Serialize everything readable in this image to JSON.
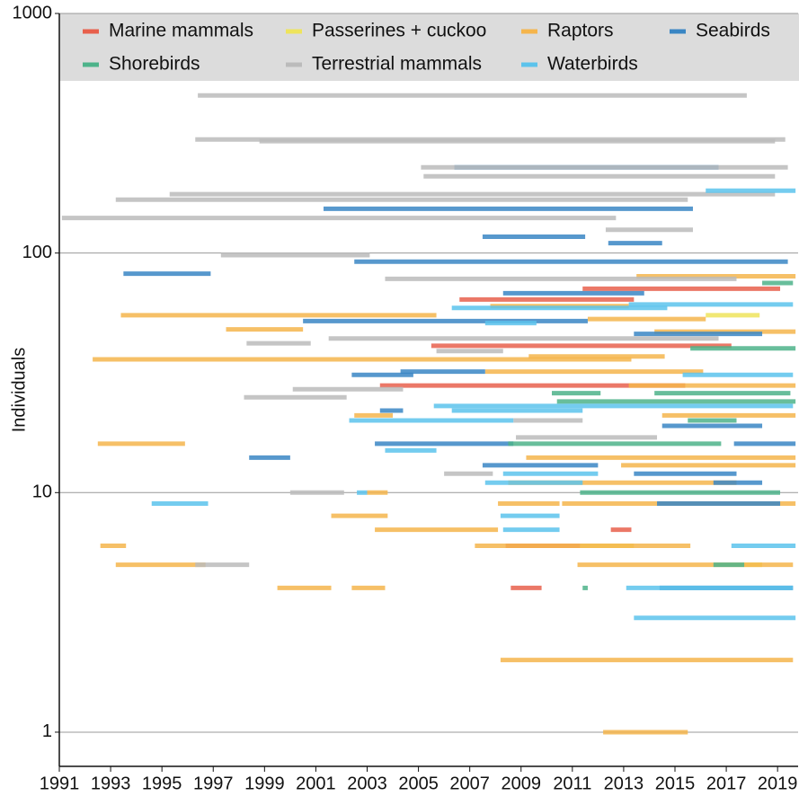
{
  "chart_data": {
    "type": "segment",
    "ylabel": "Individuals",
    "log_y": true,
    "grid": true,
    "legend": "top",
    "xlim": [
      1991,
      2019.8
    ],
    "xticks": [
      1991,
      1993,
      1995,
      1997,
      1999,
      2001,
      2003,
      2005,
      2007,
      2009,
      2011,
      2013,
      2015,
      2017,
      2019
    ],
    "ylim": [
      0.72,
      1000
    ],
    "yticks": [
      1,
      10,
      100,
      1000
    ],
    "series": [
      {
        "name": "Marine mammals",
        "color": "#e8604c",
        "values": [
          71,
          64,
          41,
          28,
          7,
          6,
          4
        ],
        "start": [
          2011.4,
          2006.6,
          2005.5,
          2003.5,
          2012.5,
          2008.4,
          2008.6
        ],
        "end": [
          2019.1,
          2013.4,
          2017.2,
          2015.4,
          2013.3,
          2011.3,
          2009.8
        ]
      },
      {
        "name": "Passerines + cuckoo",
        "color": "#eee45c",
        "values": [
          55,
          6,
          5
        ],
        "start": [
          2016.2,
          2011.3,
          2017.7
        ],
        "end": [
          2018.3,
          2013.4,
          2018.4
        ]
      },
      {
        "name": "Raptors",
        "color": "#f5b54c",
        "values": [
          80,
          55,
          53,
          48,
          60,
          47,
          36,
          37,
          32,
          28,
          21,
          21,
          16,
          14,
          13,
          11,
          10,
          9,
          9,
          8,
          7,
          6,
          6,
          5,
          5,
          4,
          4,
          2,
          1
        ],
        "start": [
          2013.5,
          1993.4,
          2011.6,
          1997.5,
          2007.8,
          2014.2,
          1992.3,
          2009.3,
          2007.6,
          2013.2,
          2002.5,
          2014.5,
          1992.5,
          2009.2,
          2012.9,
          2008.5,
          2003.0,
          2008.1,
          2010.6,
          2001.6,
          2003.3,
          1992.6,
          2007.2,
          1993.2,
          2011.2,
          1999.5,
          2002.4,
          2008.2,
          2012.2
        ],
        "end": [
          2019.7,
          2005.7,
          2016.2,
          2000.5,
          2013.2,
          2019.7,
          2013.3,
          2014.6,
          2016.1,
          2019.7,
          2004.0,
          2019.7,
          1995.9,
          2019.7,
          2019.7,
          2017.4,
          2003.8,
          2010.5,
          2019.7,
          2003.8,
          2008.1,
          1993.6,
          2015.6,
          1996.7,
          2019.6,
          2001.6,
          2003.7,
          2019.6,
          2015.5
        ]
      },
      {
        "name": "Seabirds",
        "color": "#3a86c4",
        "values": [
          228,
          153,
          117,
          110,
          92,
          82,
          68,
          52,
          46,
          32,
          31,
          22,
          16,
          14,
          13,
          12,
          16,
          9,
          4,
          11,
          19
        ],
        "start": [
          2006.4,
          2001.3,
          2007.5,
          2012.4,
          2002.5,
          1993.5,
          2008.3,
          2000.5,
          2013.4,
          2004.3,
          2002.4,
          2003.5,
          2003.3,
          1998.4,
          2007.5,
          2013.4,
          2017.3,
          2014.3,
          2014.4,
          2016.5,
          2014.5
        ],
        "end": [
          2016.7,
          2015.7,
          2011.5,
          2014.5,
          2019.4,
          1996.9,
          2013.8,
          2011.6,
          2018.4,
          2007.6,
          2004.8,
          2004.4,
          2008.7,
          2000.0,
          2012.0,
          2017.4,
          2019.7,
          2019.1,
          2019.6,
          2018.4,
          2018.4
        ]
      },
      {
        "name": "Shorebirds",
        "color": "#4db38a",
        "values": [
          75,
          40,
          26,
          24,
          26,
          20,
          16,
          10,
          5,
          4
        ],
        "start": [
          2018.4,
          2015.6,
          2010.2,
          2010.4,
          2014.2,
          2015.5,
          2008.5,
          2011.3,
          2016.5,
          2011.4
        ],
        "end": [
          2019.6,
          2019.7,
          2012.1,
          2019.7,
          2019.5,
          2017.4,
          2016.8,
          2019.1,
          2017.7,
          2011.6
        ]
      },
      {
        "name": "Terrestrial mammals",
        "color": "#bbbbbb",
        "values": [
          455,
          298,
          293,
          228,
          209,
          176,
          167,
          140,
          125,
          98,
          78,
          44,
          42,
          39,
          25,
          27,
          17,
          12,
          10,
          5,
          20
        ],
        "start": [
          1996.4,
          1996.3,
          1998.8,
          2005.1,
          2005.2,
          1995.3,
          1993.2,
          1991.1,
          2012.3,
          1997.3,
          2003.7,
          2001.5,
          1998.3,
          2005.7,
          1998.2,
          2000.1,
          2008.8,
          2006.0,
          2000.0,
          1996.3,
          2008.7
        ],
        "end": [
          2017.8,
          2019.3,
          2018.9,
          2019.4,
          2018.9,
          2018.9,
          2015.5,
          2012.7,
          2015.7,
          2003.1,
          2017.4,
          2016.7,
          2000.8,
          2008.3,
          2002.2,
          2004.4,
          2014.3,
          2007.9,
          2002.1,
          1998.4,
          2011.4
        ]
      },
      {
        "name": "Waterbirds",
        "color": "#5cc3ec",
        "values": [
          182,
          59,
          61,
          51,
          31,
          23,
          22,
          20,
          15,
          12,
          11,
          9,
          8,
          6,
          4,
          3,
          7,
          10
        ],
        "start": [
          2016.2,
          2006.3,
          2013.2,
          2007.6,
          2015.3,
          2005.6,
          2006.3,
          2002.3,
          2003.7,
          2008.3,
          2007.6,
          1994.6,
          2008.2,
          2017.2,
          2013.1,
          2013.4,
          2008.3,
          2002.6
        ],
        "end": [
          2019.7,
          2014.7,
          2019.6,
          2009.6,
          2019.6,
          2019.6,
          2011.4,
          2008.7,
          2005.7,
          2012.0,
          2011.4,
          1996.8,
          2010.5,
          2019.7,
          2019.6,
          2019.7,
          2010.5,
          2003.0
        ]
      }
    ]
  }
}
